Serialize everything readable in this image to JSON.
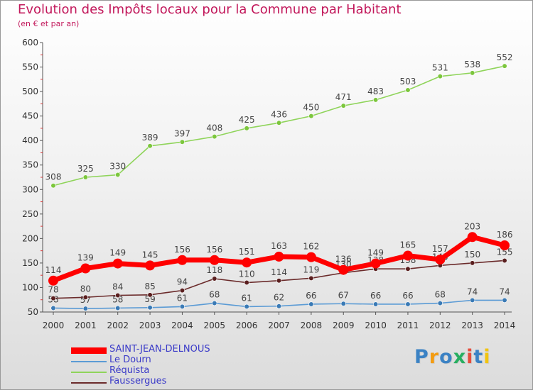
{
  "header": {
    "title": "Evolution des Impôts locaux pour la Commune par Habitant",
    "subtitle": "(en € et par an)"
  },
  "logo": {
    "text": "Proxiti"
  },
  "chart_data": {
    "type": "line",
    "title": "Evolution des Impôts locaux pour la Commune par Habitant",
    "subtitle": "(en € et par an)",
    "xlabel": "",
    "ylabel": "",
    "ylim": [
      50,
      600
    ],
    "yticks": [
      50,
      100,
      150,
      200,
      250,
      300,
      350,
      400,
      450,
      500,
      550,
      600
    ],
    "categories": [
      "2000",
      "2001",
      "2002",
      "2003",
      "2004",
      "2005",
      "2006",
      "2007",
      "2008",
      "2009",
      "2010",
      "2011",
      "2012",
      "2013",
      "2014"
    ],
    "grid": false,
    "legend": "bottom-left",
    "series": [
      {
        "name": "Réquista",
        "color": "#8fd45a",
        "marker": "#7cc63d",
        "values": [
          308,
          325,
          330,
          389,
          397,
          408,
          425,
          436,
          450,
          471,
          483,
          503,
          531,
          538,
          552
        ]
      },
      {
        "name": "Le Dourn",
        "color": "#5b9bd5",
        "marker": "#3a7ab5",
        "values": [
          58,
          57,
          58,
          59,
          61,
          68,
          61,
          62,
          66,
          67,
          66,
          66,
          68,
          74,
          74
        ]
      },
      {
        "name": "Faussergues",
        "color": "#6b2b2b",
        "marker": "#5a1f1f",
        "values": [
          78,
          80,
          84,
          85,
          94,
          118,
          110,
          114,
          119,
          130,
          138,
          138,
          145,
          150,
          155
        ]
      },
      {
        "name": "SAINT-JEAN-DELNOUS",
        "color": "#ff0000",
        "marker": "#ff0000",
        "values": [
          114,
          139,
          149,
          145,
          156,
          156,
          151,
          163,
          162,
          136,
          149,
          165,
          157,
          203,
          186
        ]
      }
    ]
  }
}
